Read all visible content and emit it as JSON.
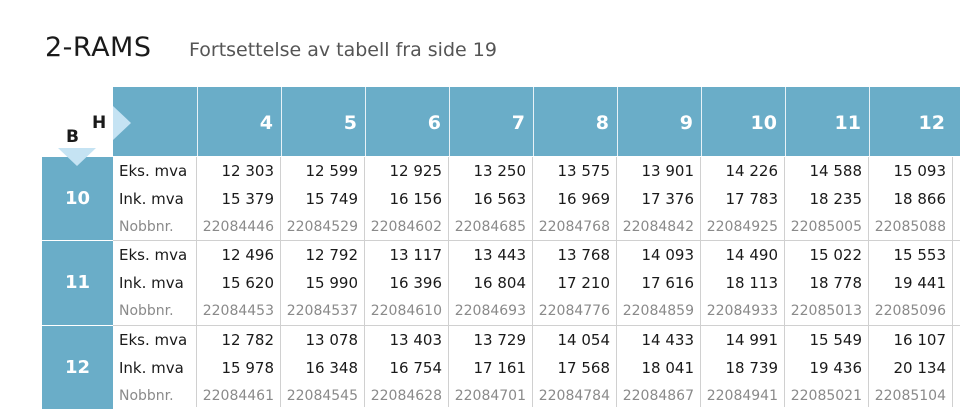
{
  "header": {
    "title": "2-RAMS",
    "subtitle": "Fortsettelse av tabell fra side 19"
  },
  "axis": {
    "h_label": "H",
    "b_label": "B"
  },
  "colors": {
    "header_blue": "#6aadc8",
    "arrow_light_blue": "#c5e3f3"
  },
  "columns": [
    "4",
    "5",
    "6",
    "7",
    "8",
    "9",
    "10",
    "11",
    "12"
  ],
  "row_labels": {
    "eks": "Eks. mva",
    "ink": "Ink. mva",
    "nobb": "Nobbnr."
  },
  "rows": [
    {
      "b": "10",
      "eks": [
        "12 303",
        "12 599",
        "12 925",
        "13 250",
        "13 575",
        "13 901",
        "14 226",
        "14 588",
        "15 093"
      ],
      "ink": [
        "15 379",
        "15 749",
        "16 156",
        "16 563",
        "16 969",
        "17 376",
        "17 783",
        "18 235",
        "18 866"
      ],
      "nobb": [
        "22084446",
        "22084529",
        "22084602",
        "22084685",
        "22084768",
        "22084842",
        "22084925",
        "22085005",
        "22085088"
      ]
    },
    {
      "b": "11",
      "eks": [
        "12 496",
        "12 792",
        "13 117",
        "13 443",
        "13 768",
        "14 093",
        "14 490",
        "15 022",
        "15 553"
      ],
      "ink": [
        "15 620",
        "15 990",
        "16 396",
        "16 804",
        "17 210",
        "17 616",
        "18 113",
        "18 778",
        "19 441"
      ],
      "nobb": [
        "22084453",
        "22084537",
        "22084610",
        "22084693",
        "22084776",
        "22084859",
        "22084933",
        "22085013",
        "22085096"
      ]
    },
    {
      "b": "12",
      "eks": [
        "12 782",
        "13 078",
        "13 403",
        "13 729",
        "14 054",
        "14 433",
        "14 991",
        "15 549",
        "16 107"
      ],
      "ink": [
        "15 978",
        "16 348",
        "16 754",
        "17 161",
        "17 568",
        "18 041",
        "18 739",
        "19 436",
        "20 134"
      ],
      "nobb": [
        "22084461",
        "22084545",
        "22084628",
        "22084701",
        "22084784",
        "22084867",
        "22084941",
        "22085021",
        "22085104"
      ]
    }
  ]
}
